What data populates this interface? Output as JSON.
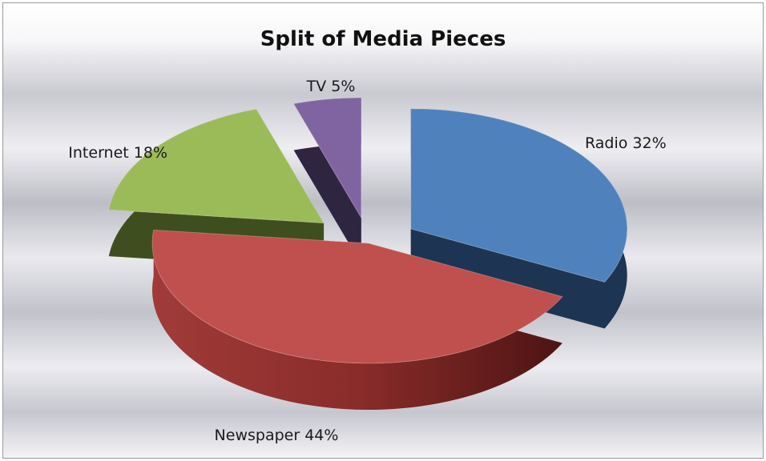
{
  "chart_data": {
    "type": "pie",
    "title": "Split of Media Pieces",
    "slices": [
      {
        "label": "Radio",
        "value": 32,
        "label_text": "Radio 32%",
        "color": "#4F81BD",
        "side_color": "#1E3453"
      },
      {
        "label": "Newspaper",
        "value": 44,
        "label_text": "Newspaper 44%",
        "color": "#C0504D",
        "side_color": "#6E1E1E"
      },
      {
        "label": "Internet",
        "value": 18,
        "label_text": "Internet 18%",
        "color": "#9BBB59",
        "side_color": "#3F4E1E"
      },
      {
        "label": "TV",
        "value": 5,
        "label_text": "TV 5%",
        "color": "#8064A2",
        "side_color": "#2E2540"
      }
    ],
    "style": "3d-exploded",
    "legend": "none"
  }
}
